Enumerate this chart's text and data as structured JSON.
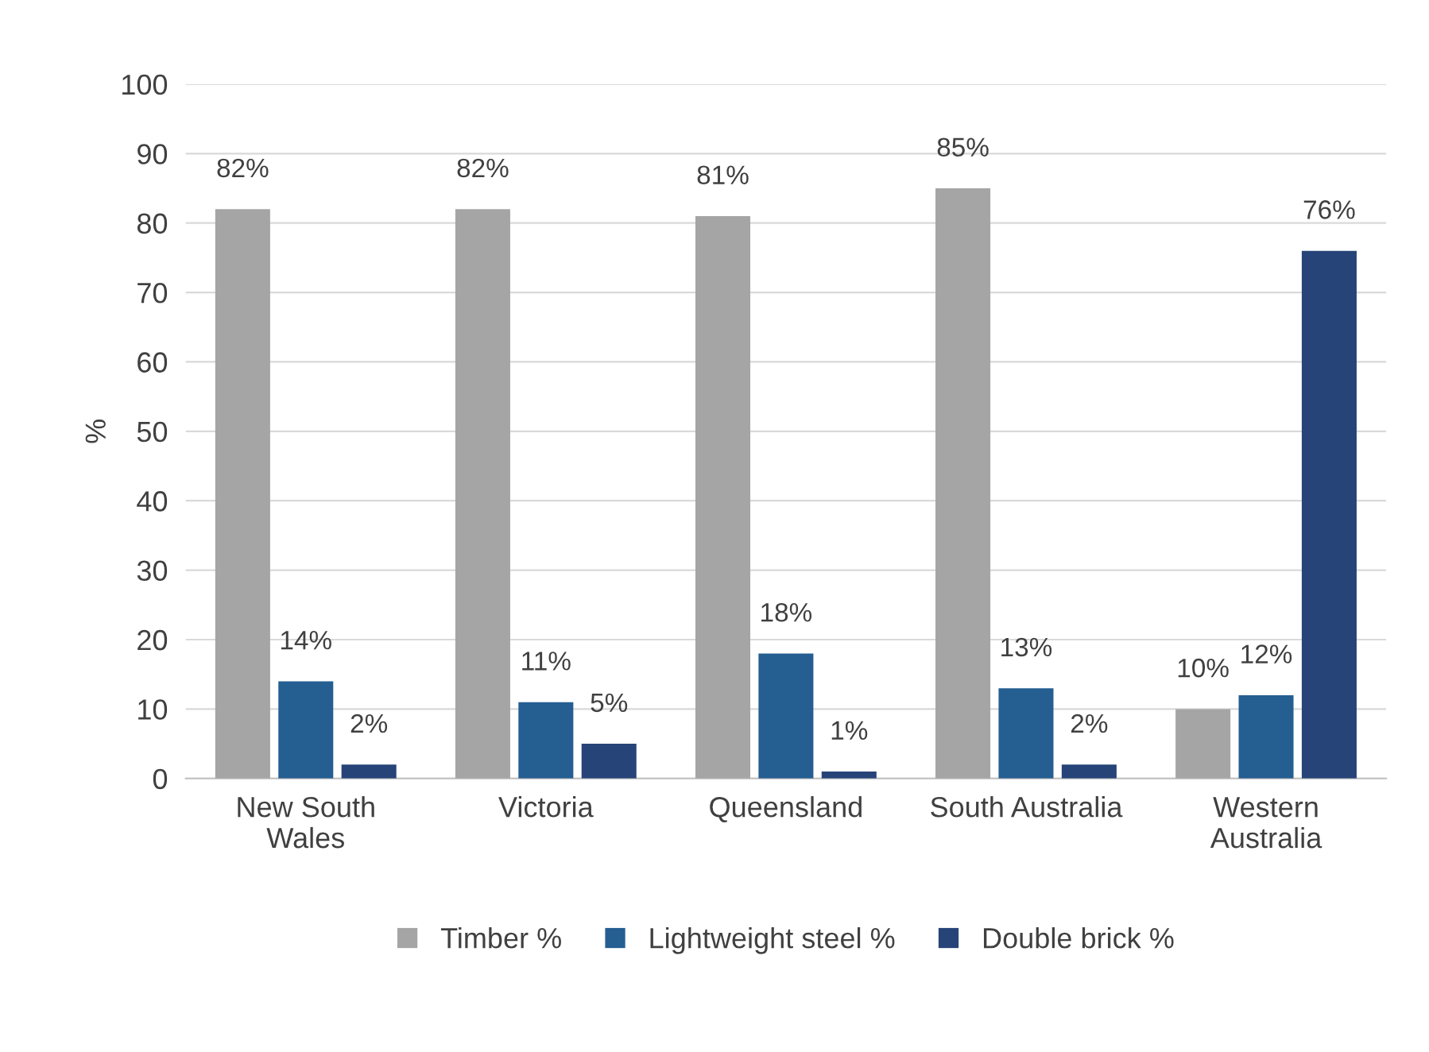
{
  "chart_data": {
    "type": "bar",
    "ylabel": "%",
    "categories": [
      "New South\nWales",
      "Victoria",
      "Queensland",
      "South Australia",
      "Western\nAustralia"
    ],
    "series": [
      {
        "name": "Timber %",
        "color": "#a5a5a5",
        "values": [
          82,
          82,
          81,
          85,
          10
        ],
        "value_labels": [
          "82%",
          "82%",
          "81%",
          "85%",
          "10%"
        ]
      },
      {
        "name": "Lightweight steel %",
        "color": "#255e91",
        "values": [
          14,
          11,
          18,
          13,
          12
        ],
        "value_labels": [
          "14%",
          "11%",
          "18%",
          "13%",
          "12%"
        ]
      },
      {
        "name": "Double brick %",
        "color": "#264478",
        "values": [
          2,
          5,
          1,
          2,
          76
        ],
        "value_labels": [
          "2%",
          "5%",
          "1%",
          "2%",
          "76%"
        ]
      }
    ],
    "ylim": [
      0,
      100
    ],
    "yticks": [
      0,
      10,
      20,
      30,
      40,
      50,
      60,
      70,
      80,
      90,
      100
    ],
    "grid": "y",
    "legend": "bottom"
  }
}
